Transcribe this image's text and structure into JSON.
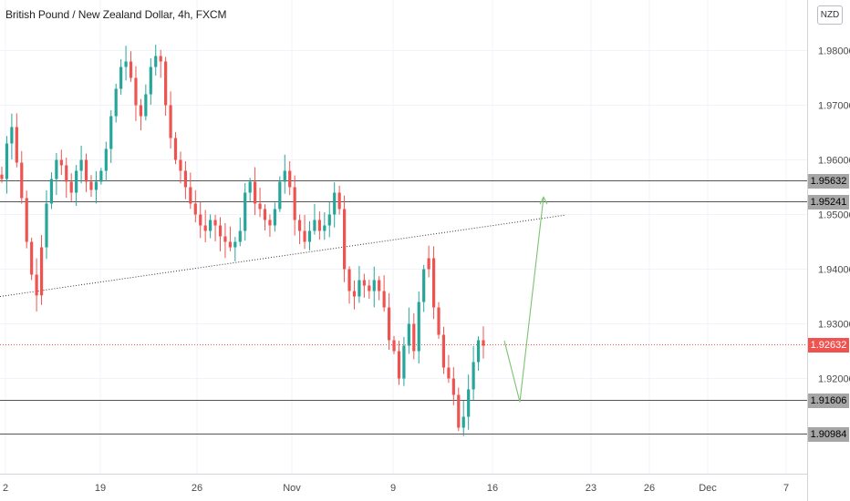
{
  "title": "British Pound / New Zealand Dollar, 4h, FXCM",
  "currency_button": "NZD",
  "colors": {
    "up": "#26a69a",
    "down": "#ef5350",
    "level": "#555555",
    "current": "#ef5350",
    "projection": "#7cc271"
  },
  "chart_data": {
    "type": "candlestick",
    "title": "British Pound / New Zealand Dollar, 4h, FXCM",
    "symbol": "GBPNZD",
    "timeframe": "4h",
    "x_ticks": [
      "2",
      "19",
      "26",
      "Nov",
      "9",
      "16",
      "23",
      "26",
      "Dec",
      "7"
    ],
    "y_ticks": [
      "1.98000",
      "1.97000",
      "1.96000",
      "1.95000",
      "1.94000",
      "1.93000",
      "1.92000"
    ],
    "ylim": [
      1.9045,
      1.9865
    ],
    "grid": true,
    "current_price": {
      "value": 1.92632,
      "label": "1.92632"
    },
    "levels": [
      {
        "value": 1.95632,
        "label": "1.95632"
      },
      {
        "value": 1.95241,
        "label": "1.95241"
      },
      {
        "value": 1.91606,
        "label": "1.91606"
      },
      {
        "value": 1.90984,
        "label": "1.90984"
      }
    ],
    "trendline": {
      "from": 1.935,
      "to": 1.9499
    },
    "projection": [
      1.9269,
      1.9157,
      1.9532
    ],
    "price_path": [
      1.9565,
      1.963,
      1.966,
      1.9595,
      1.953,
      1.945,
      1.939,
      1.9352,
      1.944,
      1.952,
      1.9565,
      1.96,
      1.959,
      1.956,
      1.954,
      1.958,
      1.96,
      1.956,
      1.9545,
      1.956,
      1.958,
      1.962,
      1.968,
      1.973,
      1.977,
      1.978,
      1.975,
      1.97,
      1.968,
      1.972,
      1.977,
      1.979,
      1.978,
      1.97,
      1.964,
      1.96,
      1.958,
      1.955,
      1.952,
      1.95,
      1.948,
      1.947,
      1.949,
      1.948,
      1.946,
      1.945,
      1.944,
      1.945,
      1.947,
      1.954,
      1.956,
      1.952,
      1.951,
      1.949,
      1.948,
      1.951,
      1.956,
      1.958,
      1.955,
      1.949,
      1.947,
      1.945,
      1.947,
      1.949,
      1.947,
      1.948,
      1.95,
      1.954,
      1.951,
      1.94,
      1.936,
      1.935,
      1.938,
      1.937,
      1.936,
      1.938,
      1.936,
      1.933,
      1.927,
      1.925,
      1.92,
      1.926,
      1.93,
      1.925,
      1.934,
      1.94,
      1.942,
      1.933,
      1.928,
      1.922,
      1.92,
      1.917,
      1.911,
      1.913,
      1.918,
      1.923,
      1.927,
      1.926
    ],
    "down_candles": [
      8,
      12,
      34,
      37,
      46,
      59,
      61,
      64,
      68,
      70,
      73,
      76,
      77,
      79,
      86,
      87,
      88,
      91
    ]
  }
}
